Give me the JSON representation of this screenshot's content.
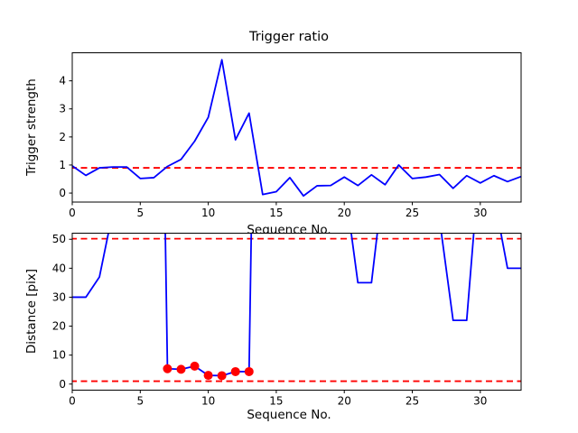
{
  "figure": {
    "background": "#ffffff",
    "line_color": "#0000ff",
    "threshold_color": "#ff0000",
    "marker_color": "#ff0000",
    "axis_color": "#000000"
  },
  "chart_data": [
    {
      "type": "line",
      "title": "Trigger ratio",
      "xlabel": "Sequence No.",
      "ylabel": "Trigger strength",
      "xlim": [
        0,
        33
      ],
      "ylim": [
        -0.32,
        5.0
      ],
      "xticks": [
        0,
        5,
        10,
        15,
        20,
        25,
        30
      ],
      "yticks": [
        0,
        1,
        2,
        3,
        4
      ],
      "grid": false,
      "legend": null,
      "thresholds": [
        0.9
      ],
      "x": [
        0,
        1,
        2,
        3,
        4,
        5,
        6,
        7,
        8,
        9,
        10,
        11,
        12,
        13,
        14,
        15,
        16,
        17,
        18,
        19,
        20,
        21,
        22,
        23,
        24,
        25,
        26,
        27,
        28,
        29,
        30,
        31,
        32,
        33
      ],
      "values": [
        0.97,
        0.63,
        0.9,
        0.93,
        0.93,
        0.52,
        0.55,
        0.95,
        1.2,
        1.85,
        2.7,
        4.75,
        1.9,
        2.85,
        -0.05,
        0.05,
        0.55,
        -0.1,
        0.26,
        0.27,
        0.57,
        0.27,
        0.65,
        0.3,
        1.0,
        0.52,
        0.57,
        0.66,
        0.17,
        0.62,
        0.36,
        0.62,
        0.41,
        0.59
      ]
    },
    {
      "type": "line",
      "title": "",
      "xlabel": "Sequence No.",
      "ylabel": "Distance [pix]",
      "xlim": [
        0,
        33
      ],
      "ylim": [
        -2.1,
        52.1
      ],
      "xticks": [
        0,
        5,
        10,
        15,
        20,
        25,
        30
      ],
      "yticks": [
        0,
        10,
        20,
        30,
        40,
        50
      ],
      "grid": false,
      "legend": null,
      "thresholds": [
        50.2,
        1.0
      ],
      "offscale_sentinel": 300,
      "x": [
        0,
        1,
        2,
        3,
        4,
        5,
        6,
        7,
        8,
        9,
        10,
        11,
        12,
        13,
        14,
        15,
        16,
        17,
        18,
        19,
        20,
        21,
        22,
        23,
        24,
        25,
        26,
        27,
        28,
        29,
        30,
        31,
        32,
        33
      ],
      "values": [
        30,
        30,
        37,
        60,
        300,
        300,
        300,
        5.3,
        5.1,
        6.2,
        3.0,
        2.9,
        4.3,
        4.3,
        300,
        300,
        300,
        300,
        300,
        300,
        70,
        35,
        35,
        75,
        300,
        300,
        300,
        57,
        22,
        22,
        80,
        65,
        40,
        40
      ],
      "markers": {
        "shape": "circle",
        "x": [
          7,
          8,
          9,
          10,
          11,
          12,
          13
        ],
        "values": [
          5.3,
          5.1,
          6.2,
          3.0,
          2.9,
          4.3,
          4.3
        ]
      }
    }
  ]
}
